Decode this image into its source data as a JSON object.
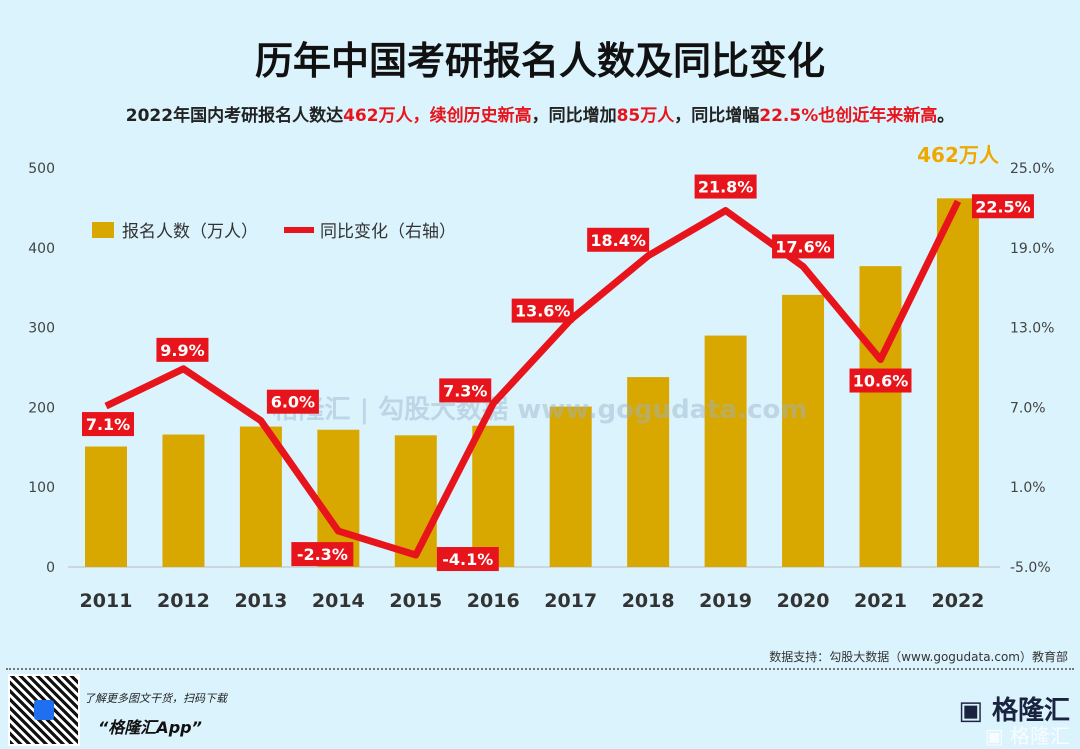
{
  "title": "历年中国考研报名人数及同比变化",
  "subtitle": {
    "p1": "2022年国内考研报名人数达",
    "p2": "462万人，续创历史新高",
    "p3": "，同比增加",
    "p4": "85万人",
    "p5": "，同比增幅",
    "p6": "22.5%也创近年来新高",
    "p7": "。"
  },
  "chart_data": {
    "type": "bar+line",
    "categories": [
      "2011",
      "2012",
      "2013",
      "2014",
      "2015",
      "2016",
      "2017",
      "2018",
      "2019",
      "2020",
      "2021",
      "2022"
    ],
    "series": [
      {
        "name": "报名人数（万人）",
        "type": "bar",
        "axis": "left",
        "color": "#d9a800",
        "values": [
          151,
          166,
          176,
          172,
          165,
          177,
          201,
          238,
          290,
          341,
          377,
          462
        ]
      },
      {
        "name": "同比变化（右轴）",
        "type": "line",
        "axis": "right",
        "color": "#e8141b",
        "values": [
          7.1,
          9.9,
          6.0,
          -2.3,
          -4.1,
          7.3,
          13.6,
          18.4,
          21.8,
          17.6,
          10.6,
          22.5
        ],
        "labels": [
          "7.1%",
          "9.9%",
          "6.0%",
          "-2.3%",
          "-4.1%",
          "7.3%",
          "13.6%",
          "18.4%",
          "21.8%",
          "17.6%",
          "10.6%",
          "22.5%"
        ]
      }
    ],
    "left_axis": {
      "range": [
        0,
        500
      ],
      "ticks": [
        "0",
        "100",
        "200",
        "300",
        "400",
        "500"
      ]
    },
    "right_axis": {
      "range": [
        -5,
        25
      ],
      "ticks": [
        "-5.0%",
        "1.0%",
        "7.0%",
        "13.0%",
        "19.0%",
        "25.0%"
      ]
    },
    "annotation": "462万人",
    "legend_position": "top-left",
    "grid": false
  },
  "watermark": "格隆汇 | 勾股大数据 www.gogudata.com",
  "footer": {
    "source": "数据支持：勾股大数据（www.gogudata.com）教育部",
    "more": "了解更多图文干货，扫码下载",
    "app": "“格隆汇App”",
    "logo": "格隆汇",
    "logo_url": "www.gelonghui.com"
  }
}
